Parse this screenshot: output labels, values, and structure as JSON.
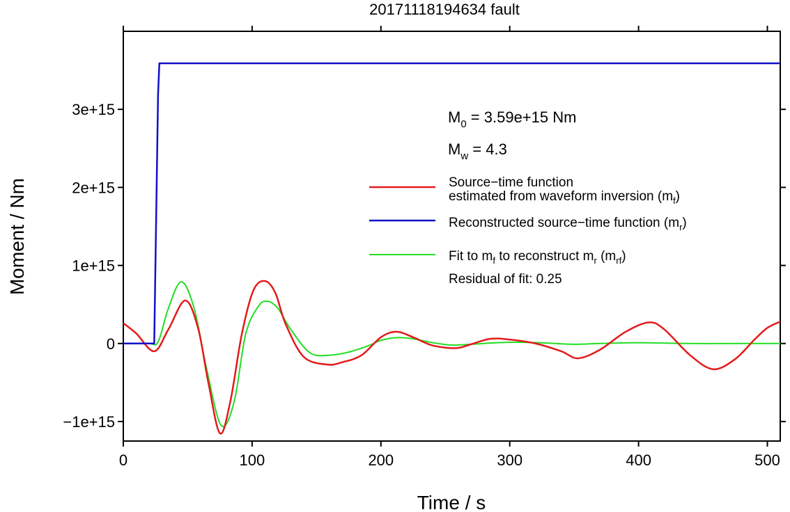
{
  "chart_data": {
    "type": "line",
    "title": "20171118194634 fault",
    "xlabel": "Time / s",
    "ylabel": "Moment / Nm",
    "xlim": [
      0,
      510
    ],
    "ylim": [
      -1250000000000000.0,
      4000000000000000.0
    ],
    "xticks": [
      0,
      100,
      200,
      300,
      400,
      500
    ],
    "xtick_labels": [
      "0",
      "100",
      "200",
      "300",
      "400",
      "500"
    ],
    "yticks": [
      -1000000000000000.0,
      0,
      1000000000000000.0,
      2000000000000000.0,
      3000000000000000.0
    ],
    "ytick_labels": [
      "−1e+15",
      "0",
      "1e+15",
      "2e+15",
      "3e+15"
    ],
    "grid": false,
    "legend_placement": "right",
    "annotations": {
      "m0_main": "M",
      "m0_sub": "0",
      "m0_value": " = 3.59e+15 Nm",
      "mw_main": "M",
      "mw_sub": "w",
      "mw_value": " = 4.3",
      "residual": "Residual of fit: 0.25"
    },
    "legend": {
      "red_line1": "Source−time function",
      "red_line2": "estimated from waveform inversion (m",
      "red_line2_sub": "f",
      "red_line2_end": ")",
      "blue": "Reconstructed source−time function (m",
      "blue_sub": "r",
      "blue_end": ")",
      "green_a": "Fit to m",
      "green_sub1": "f",
      "green_b": " to reconstruct m",
      "green_sub2": "r",
      "green_c": " (m",
      "green_sub3": "rf",
      "green_d": ")"
    },
    "series": [
      {
        "name": "Source−time function estimated from waveform inversion (mf)",
        "color": "#e31a1c",
        "x": [
          0,
          10,
          24,
          35,
          48,
          58,
          66,
          75,
          83,
          92,
          101,
          110,
          118,
          126,
          140,
          158,
          170,
          185,
          200,
          212,
          225,
          240,
          258,
          270,
          285,
          300,
          320,
          340,
          353,
          370,
          390,
          408,
          420,
          440,
          458,
          475,
          490,
          500,
          510
        ],
        "y": [
          260000000000000.0,
          130000000000000.0,
          -100000000000000.0,
          180000000000000.0,
          550000000000000.0,
          200000000000000.0,
          -500000000000000.0,
          -1150000000000000.0,
          -750000000000000.0,
          120000000000000.0,
          680000000000000.0,
          800000000000000.0,
          650000000000000.0,
          250000000000000.0,
          -170000000000000.0,
          -270000000000000.0,
          -240000000000000.0,
          -150000000000000.0,
          80000000000000.0,
          150000000000000.0,
          80000000000000.0,
          -25000000000000.0,
          -60000000000000.0,
          -10000000000000.0,
          60000000000000.0,
          50000000000000.0,
          0.0,
          -100000000000000.0,
          -190000000000000.0,
          -80000000000000.0,
          150000000000000.0,
          270000000000000.0,
          180000000000000.0,
          -150000000000000.0,
          -330000000000000.0,
          -200000000000000.0,
          50000000000000.0,
          200000000000000.0,
          280000000000000.0
        ]
      },
      {
        "name": "Reconstructed source−time function (mr)",
        "color": "#1010c8",
        "x": [
          0,
          24,
          27,
          28,
          510
        ],
        "y": [
          0,
          0,
          3200000000000000.0,
          3590000000000000.0,
          3590000000000000.0
        ]
      },
      {
        "name": "Fit to mf to reconstruct mr (mrf)",
        "color": "#22dd22",
        "x": [
          0,
          20,
          27,
          35,
          45,
          55,
          65,
          76,
          86,
          95,
          105,
          112,
          120,
          130,
          145,
          160,
          175,
          190,
          200,
          212,
          225,
          240,
          255,
          270,
          290,
          310,
          330,
          350,
          370,
          400,
          440,
          480,
          510
        ],
        "y": [
          0,
          0,
          20000000000000.0,
          450000000000000.0,
          790000000000000.0,
          450000000000000.0,
          -350000000000000.0,
          -1050000000000000.0,
          -750000000000000.0,
          120000000000000.0,
          480000000000000.0,
          540000000000000.0,
          450000000000000.0,
          180000000000000.0,
          -120000000000000.0,
          -150000000000000.0,
          -110000000000000.0,
          -30000000000000.0,
          40000000000000.0,
          75000000000000.0,
          60000000000000.0,
          10000000000000.0,
          -20000000000000.0,
          -10000000000000.0,
          10000000000000.0,
          15000000000000.0,
          5000000000000.0,
          -10000000000000.0,
          0.0,
          10000000000000.0,
          0.0,
          0.0,
          0.0
        ]
      }
    ]
  }
}
